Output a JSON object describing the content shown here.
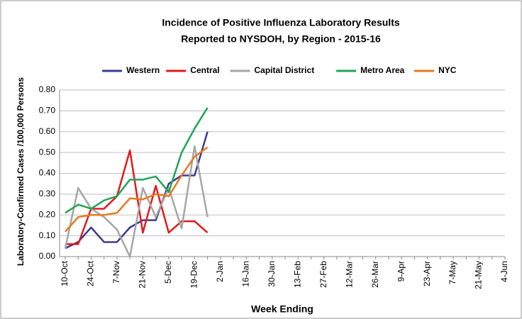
{
  "chart_data": {
    "type": "line",
    "title": "Incidence of Positive Influenza Laboratory Results",
    "subtitle": "Reported to NYSDOH, by Region - 2015-16",
    "x_label": "Week Ending",
    "y_label": "Laboratory-Confirmed Cases /100,000 Persons",
    "categories": [
      "10-Oct",
      null,
      "24-Oct",
      null,
      "7-Nov",
      null,
      "21-Nov",
      null,
      "5-Dec",
      null,
      "19-Dec",
      null,
      "2-Jan",
      null,
      "16-Jan",
      null,
      "30-Jan",
      null,
      "13-Feb",
      null,
      "27-Feb",
      null,
      "12-Mar",
      null,
      "26-Mar",
      null,
      "9-Apr",
      null,
      "23-Apr",
      null,
      "7-May",
      null,
      "21-May",
      null,
      "4-Jun"
    ],
    "series": [
      {
        "name": "Western",
        "color": "#3b3b8f",
        "values": [
          0.04,
          0.07,
          0.14,
          0.07,
          0.07,
          0.14,
          0.175,
          0.175,
          0.35,
          0.39,
          0.39,
          0.6,
          null,
          null,
          null,
          null,
          null,
          null,
          null,
          null,
          null,
          null,
          null,
          null,
          null,
          null,
          null,
          null,
          null,
          null,
          null,
          null,
          null,
          null,
          null
        ]
      },
      {
        "name": "Central",
        "color": "#e31a1c",
        "values": [
          0.06,
          0.06,
          0.23,
          0.23,
          0.29,
          0.51,
          0.115,
          0.34,
          0.115,
          0.17,
          0.17,
          0.115,
          null,
          null,
          null,
          null,
          null,
          null,
          null,
          null,
          null,
          null,
          null,
          null,
          null,
          null,
          null,
          null,
          null,
          null,
          null,
          null,
          null,
          null,
          null
        ]
      },
      {
        "name": "Capital District",
        "color": "#a6a6a6",
        "values": [
          0.04,
          0.33,
          0.23,
          0.19,
          0.13,
          0.0,
          0.33,
          0.19,
          0.33,
          0.135,
          0.53,
          0.19,
          null,
          null,
          null,
          null,
          null,
          null,
          null,
          null,
          null,
          null,
          null,
          null,
          null,
          null,
          null,
          null,
          null,
          null,
          null,
          null,
          null,
          null,
          null
        ]
      },
      {
        "name": "Metro Area",
        "color": "#1fa65a",
        "values": [
          0.21,
          0.25,
          0.23,
          0.27,
          0.29,
          0.37,
          0.37,
          0.385,
          0.31,
          0.5,
          0.615,
          0.715,
          null,
          null,
          null,
          null,
          null,
          null,
          null,
          null,
          null,
          null,
          null,
          null,
          null,
          null,
          null,
          null,
          null,
          null,
          null,
          null,
          null,
          null,
          null
        ]
      },
      {
        "name": "NYC",
        "color": "#e8791c",
        "values": [
          0.12,
          0.19,
          0.2,
          0.2,
          0.21,
          0.28,
          0.275,
          0.3,
          0.29,
          0.39,
          0.48,
          0.525,
          null,
          null,
          null,
          null,
          null,
          null,
          null,
          null,
          null,
          null,
          null,
          null,
          null,
          null,
          null,
          null,
          null,
          null,
          null,
          null,
          null,
          null,
          null
        ]
      }
    ],
    "ylim": [
      0,
      0.8
    ],
    "yticks": [
      {
        "value": 0,
        "label": "0.00"
      },
      {
        "value": 0.1,
        "label": "0.10"
      },
      {
        "value": 0.2,
        "label": "0.20"
      },
      {
        "value": 0.3,
        "label": "0.30"
      },
      {
        "value": 0.4,
        "label": "0.40"
      },
      {
        "value": 0.5,
        "label": "0.50"
      },
      {
        "value": 0.6,
        "label": "0.60"
      },
      {
        "value": 0.7,
        "label": "0.70"
      },
      {
        "value": 0.8,
        "label": "0.80"
      }
    ],
    "grid": true,
    "legend": "top"
  }
}
